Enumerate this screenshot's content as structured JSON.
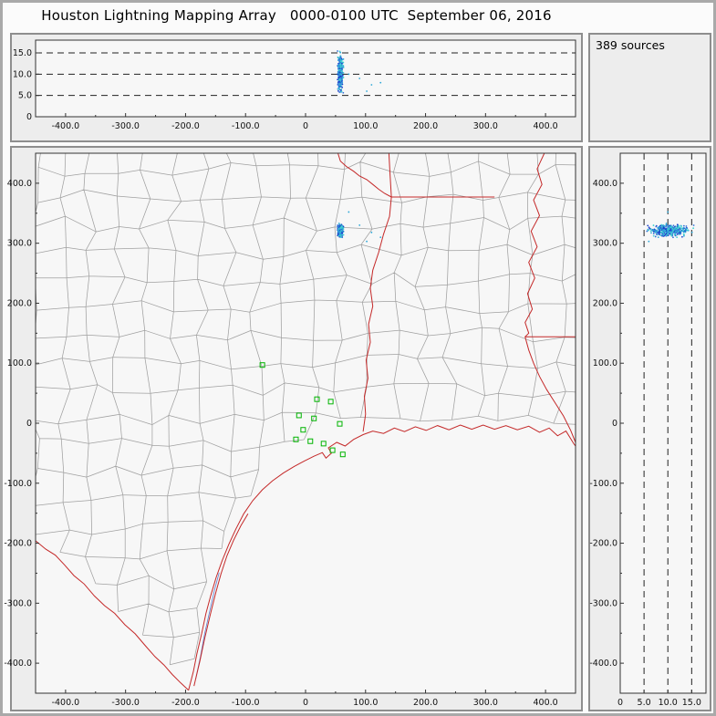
{
  "title": "Houston Lightning Mapping Array   0000-0100 UTC  September 06, 2016",
  "info_panel": {
    "sources_label": "389 sources"
  },
  "chart_data": {
    "type": "scatter",
    "seed": 20160906,
    "panels": {
      "ew_altitude": {
        "name": "altitude vs east-west distance",
        "x_range": [
          -450,
          450
        ],
        "alt_range": [
          0,
          18
        ],
        "x_tick_values": [
          -400,
          -300,
          -200,
          -100,
          0,
          100,
          200,
          300,
          400
        ],
        "x_tick_labels": [
          "-400.0",
          "-300.0",
          "-200.0",
          "-100.0",
          "0",
          "100.0",
          "200.0",
          "300.0",
          "400.0"
        ],
        "alt_tick_values": [
          0,
          5,
          10,
          15
        ],
        "alt_tick_labels": [
          "0",
          "5.0",
          "10.0",
          "15.0"
        ],
        "dashed_levels": [
          5,
          10,
          15
        ]
      },
      "plan_view": {
        "name": "plan view map of lightning sources",
        "x_range": [
          -450,
          450
        ],
        "y_range": [
          -450,
          450
        ],
        "x_tick_values": [
          -400,
          -300,
          -200,
          -100,
          0,
          100,
          200,
          300,
          400
        ],
        "x_tick_labels": [
          "-400.0",
          "-300.0",
          "-200.0",
          "-100.0",
          "0",
          "100.0",
          "200.0",
          "300.0",
          "400.0"
        ],
        "y_tick_values": [
          400,
          300,
          200,
          100,
          0,
          -100,
          -200,
          -300,
          -400
        ],
        "y_tick_labels": [
          "400.0",
          "300.0",
          "200.0",
          "100.0",
          "0",
          "-100.0",
          "-200.0",
          "-300.0",
          "-400.0"
        ]
      },
      "ns_altitude": {
        "name": "altitude vs north-south distance",
        "alt_range": [
          0,
          18
        ],
        "y_range": [
          -450,
          450
        ],
        "alt_tick_values": [
          0,
          5,
          10,
          15
        ],
        "alt_tick_labels": [
          "0",
          "5.0",
          "10.0",
          "15.0"
        ],
        "y_tick_values": [
          400,
          300,
          200,
          100,
          0,
          -100,
          -200,
          -300,
          -400
        ],
        "y_tick_labels": [
          "400.0",
          "300.0",
          "200.0",
          "100.0",
          "0",
          "-100.0",
          "-200.0",
          "-300.0",
          "-400.0"
        ],
        "dashed_levels": [
          5,
          10,
          15
        ]
      }
    },
    "sources": {
      "count": 389,
      "dot_radius": 0.9,
      "palette": [
        "#1b3fca",
        "#2f6fd8",
        "#2fa8d8",
        "#3ed0d0"
      ],
      "cluster": {
        "count": 384,
        "x_mean": 58,
        "x_std": 6,
        "x_min": 46,
        "x_max": 74,
        "y_mean": 321,
        "y_std": 14,
        "y_min": 294,
        "y_max": 350,
        "alt_min": 4.5,
        "alt_max": 16.2
      },
      "outliers": [
        [
          102,
          303,
          6.0
        ],
        [
          110,
          318,
          7.5
        ],
        [
          125,
          310,
          8.0
        ],
        [
          90,
          330,
          9.0
        ],
        [
          72,
          352,
          10.0
        ]
      ]
    },
    "stations": {
      "color": "#00b400",
      "points": [
        [
          -72,
          97
        ],
        [
          19,
          40
        ],
        [
          42,
          36
        ],
        [
          -11,
          13
        ],
        [
          14,
          8
        ],
        [
          57,
          -1
        ],
        [
          -4,
          -11
        ],
        [
          -16,
          -27
        ],
        [
          8,
          -30
        ],
        [
          30,
          -34
        ],
        [
          45,
          -45
        ],
        [
          62,
          -52
        ]
      ]
    },
    "geo": {
      "border_color": "#c42828",
      "county_color": "#a0a0a0",
      "water_color": "#5a7fd0",
      "county_grid_step": 46,
      "county_jitter": 13,
      "rio_grande": [
        [
          -450,
          -196
        ],
        [
          -433,
          -210
        ],
        [
          -417,
          -220
        ],
        [
          -402,
          -236
        ],
        [
          -386,
          -254
        ],
        [
          -369,
          -268
        ],
        [
          -352,
          -288
        ],
        [
          -335,
          -304
        ],
        [
          -318,
          -317
        ],
        [
          -301,
          -336
        ],
        [
          -284,
          -351
        ],
        [
          -267,
          -371
        ],
        [
          -251,
          -389
        ],
        [
          -236,
          -403
        ],
        [
          -222,
          -419
        ],
        [
          -208,
          -433
        ],
        [
          -195,
          -445
        ]
      ],
      "coast": [
        [
          -195,
          -445
        ],
        [
          -187,
          -414
        ],
        [
          -181,
          -384
        ],
        [
          -173,
          -350
        ],
        [
          -166,
          -317
        ],
        [
          -158,
          -287
        ],
        [
          -149,
          -257
        ],
        [
          -139,
          -229
        ],
        [
          -128,
          -202
        ],
        [
          -116,
          -176
        ],
        [
          -103,
          -151
        ],
        [
          -88,
          -129
        ],
        [
          -72,
          -111
        ],
        [
          -55,
          -96
        ],
        [
          -37,
          -83
        ],
        [
          -19,
          -72
        ],
        [
          -2,
          -63
        ],
        [
          14,
          -55
        ],
        [
          28,
          -49
        ],
        [
          34,
          -58
        ],
        [
          43,
          -50
        ],
        [
          38,
          -41
        ],
        [
          52,
          -32
        ],
        [
          66,
          -38
        ],
        [
          80,
          -27
        ],
        [
          96,
          -19
        ],
        [
          112,
          -13
        ],
        [
          130,
          -17
        ],
        [
          148,
          -8
        ],
        [
          165,
          -14
        ],
        [
          183,
          -6
        ],
        [
          201,
          -12
        ],
        [
          220,
          -4
        ],
        [
          239,
          -11
        ],
        [
          258,
          -3
        ],
        [
          277,
          -10
        ],
        [
          296,
          -3
        ],
        [
          315,
          -10
        ],
        [
          334,
          -4
        ],
        [
          353,
          -11
        ],
        [
          372,
          -5
        ],
        [
          390,
          -15
        ],
        [
          406,
          -8
        ],
        [
          420,
          -21
        ],
        [
          434,
          -13
        ],
        [
          447,
          -34
        ],
        [
          458,
          -49
        ],
        [
          470,
          -61
        ]
      ],
      "barrier_island": [
        [
          -186,
          -438
        ],
        [
          -176,
          -396
        ],
        [
          -168,
          -358
        ],
        [
          -159,
          -320
        ],
        [
          -150,
          -284
        ],
        [
          -141,
          -251
        ],
        [
          -131,
          -221
        ],
        [
          -120,
          -195
        ],
        [
          -108,
          -171
        ],
        [
          -96,
          -151
        ]
      ],
      "laguna": [
        [
          -183,
          -426
        ],
        [
          -175,
          -388
        ],
        [
          -168,
          -350
        ],
        [
          -160,
          -314
        ],
        [
          -152,
          -279
        ],
        [
          -144,
          -249
        ]
      ],
      "red_river": [
        [
          54,
          450
        ],
        [
          58,
          437
        ],
        [
          68,
          428
        ],
        [
          80,
          420
        ],
        [
          90,
          412
        ],
        [
          102,
          406
        ],
        [
          112,
          398
        ],
        [
          122,
          390
        ],
        [
          132,
          383
        ],
        [
          143,
          377
        ]
      ],
      "ok_ar": [
        [
          139,
          450
        ],
        [
          141,
          413
        ],
        [
          143,
          377
        ]
      ],
      "ar_la": [
        [
          143,
          377
        ],
        [
          315,
          377
        ]
      ],
      "tx_la": [
        [
          143,
          377
        ],
        [
          140,
          345
        ],
        [
          130,
          315
        ],
        [
          122,
          285
        ],
        [
          112,
          255
        ],
        [
          108,
          225
        ],
        [
          112,
          195
        ],
        [
          105,
          165
        ],
        [
          108,
          135
        ],
        [
          101,
          105
        ],
        [
          104,
          75
        ],
        [
          98,
          45
        ],
        [
          100,
          15
        ],
        [
          96,
          -14
        ]
      ],
      "mississippi": [
        [
          398,
          450
        ],
        [
          386,
          424
        ],
        [
          394,
          398
        ],
        [
          380,
          372
        ],
        [
          390,
          346
        ],
        [
          376,
          320
        ],
        [
          386,
          294
        ],
        [
          372,
          268
        ],
        [
          382,
          242
        ],
        [
          370,
          216
        ],
        [
          378,
          190
        ],
        [
          366,
          168
        ],
        [
          372,
          150
        ],
        [
          366,
          144
        ],
        [
          372,
          122
        ],
        [
          380,
          100
        ],
        [
          390,
          78
        ],
        [
          402,
          56
        ],
        [
          416,
          34
        ],
        [
          430,
          12
        ],
        [
          442,
          -12
        ],
        [
          450,
          -32
        ]
      ],
      "la_ms": [
        [
          366,
          144
        ],
        [
          460,
          144
        ]
      ]
    }
  }
}
